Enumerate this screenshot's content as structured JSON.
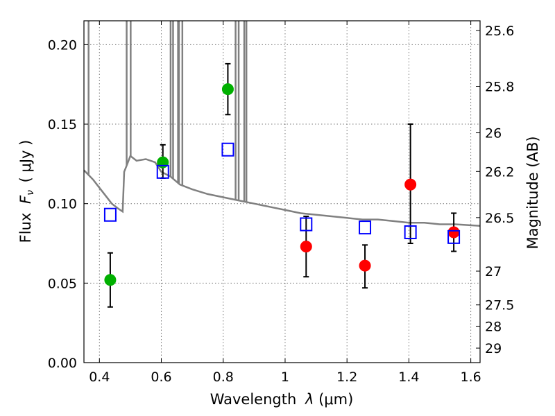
{
  "chart_data": {
    "type": "scatter",
    "xlabel_prefix": "Wavelength",
    "xlabel_symbol": "λ",
    "xlabel_unit": "(μm)",
    "ylabel_prefix": "Flux",
    "ylabel_symbol": "F",
    "ylabel_subscript": "ν",
    "ylabel_unit": "( μJy )",
    "y2label": "Magnitude (AB)",
    "xlim": [
      0.35,
      1.63
    ],
    "ylim": [
      0.0,
      0.215
    ],
    "grid": true,
    "x_ticks": [
      {
        "value": 0.4,
        "label": "0.4"
      },
      {
        "value": 0.6,
        "label": "0.6"
      },
      {
        "value": 0.8,
        "label": "0.8"
      },
      {
        "value": 1.0,
        "label": "1"
      },
      {
        "value": 1.2,
        "label": "1.2"
      },
      {
        "value": 1.4,
        "label": "1.4"
      },
      {
        "value": 1.6,
        "label": "1.6"
      }
    ],
    "y_ticks": [
      {
        "value": 0.0,
        "label": "0.00"
      },
      {
        "value": 0.05,
        "label": "0.05"
      },
      {
        "value": 0.1,
        "label": "0.10"
      },
      {
        "value": 0.15,
        "label": "0.15"
      },
      {
        "value": 0.2,
        "label": "0.20"
      }
    ],
    "y2_ticks": [
      {
        "mag": 25.6,
        "label": "25.6"
      },
      {
        "mag": 25.8,
        "label": "25.8"
      },
      {
        "mag": 26.0,
        "label": "26"
      },
      {
        "mag": 26.2,
        "label": "26.2"
      },
      {
        "mag": 26.5,
        "label": "26.5"
      },
      {
        "mag": 27.0,
        "label": "27"
      },
      {
        "mag": 27.5,
        "label": "27.5"
      },
      {
        "mag": 28.0,
        "label": "28"
      },
      {
        "mag": 29.0,
        "label": "29"
      }
    ],
    "series": [
      {
        "marker": "circle",
        "color": "#00b000",
        "points": [
          {
            "x": 0.435,
            "y": 0.052,
            "err_low": 0.035,
            "err_high": 0.069
          },
          {
            "x": 0.605,
            "y": 0.126,
            "err_low": 0.116,
            "err_high": 0.137
          },
          {
            "x": 0.815,
            "y": 0.172,
            "err_low": 0.156,
            "err_high": 0.188
          }
        ]
      },
      {
        "marker": "circle",
        "color": "#ff0000",
        "points": [
          {
            "x": 1.068,
            "y": 0.073,
            "err_low": 0.054,
            "err_high": 0.092
          },
          {
            "x": 1.258,
            "y": 0.061,
            "err_low": 0.047,
            "err_high": 0.074
          },
          {
            "x": 1.405,
            "y": 0.112,
            "err_low": 0.075,
            "err_high": 0.15
          },
          {
            "x": 1.545,
            "y": 0.082,
            "err_low": 0.07,
            "err_high": 0.094
          }
        ]
      },
      {
        "marker": "open-square",
        "color": "#0000ff",
        "points": [
          {
            "x": 0.435,
            "y": 0.093
          },
          {
            "x": 0.605,
            "y": 0.12
          },
          {
            "x": 0.815,
            "y": 0.134
          },
          {
            "x": 1.068,
            "y": 0.087
          },
          {
            "x": 1.258,
            "y": 0.085
          },
          {
            "x": 1.405,
            "y": 0.082
          },
          {
            "x": 1.545,
            "y": 0.079
          }
        ]
      }
    ],
    "model_spectrum": {
      "color": "#808080",
      "points": [
        [
          0.35,
          0.121
        ],
        [
          0.36,
          0.119
        ],
        [
          0.38,
          0.115
        ],
        [
          0.4,
          0.11
        ],
        [
          0.42,
          0.105
        ],
        [
          0.44,
          0.1
        ],
        [
          0.46,
          0.097
        ],
        [
          0.475,
          0.095
        ],
        [
          0.48,
          0.12
        ],
        [
          0.49,
          0.125
        ],
        [
          0.5,
          0.13
        ],
        [
          0.52,
          0.127
        ],
        [
          0.55,
          0.128
        ],
        [
          0.58,
          0.126
        ],
        [
          0.6,
          0.12
        ],
        [
          0.63,
          0.117
        ],
        [
          0.66,
          0.112
        ],
        [
          0.7,
          0.109
        ],
        [
          0.75,
          0.106
        ],
        [
          0.8,
          0.104
        ],
        [
          0.85,
          0.102
        ],
        [
          0.9,
          0.1
        ],
        [
          0.95,
          0.098
        ],
        [
          1.0,
          0.096
        ],
        [
          1.05,
          0.094
        ],
        [
          1.1,
          0.093
        ],
        [
          1.15,
          0.092
        ],
        [
          1.2,
          0.091
        ],
        [
          1.25,
          0.09
        ],
        [
          1.3,
          0.09
        ],
        [
          1.35,
          0.089
        ],
        [
          1.4,
          0.088
        ],
        [
          1.45,
          0.088
        ],
        [
          1.5,
          0.087
        ],
        [
          1.55,
          0.087
        ],
        [
          1.63,
          0.086
        ]
      ],
      "emission_lines": [
        0.365,
        0.488,
        0.501,
        0.63,
        0.638,
        0.654,
        0.657,
        0.668,
        0.84,
        0.85,
        0.868,
        0.875
      ]
    }
  }
}
